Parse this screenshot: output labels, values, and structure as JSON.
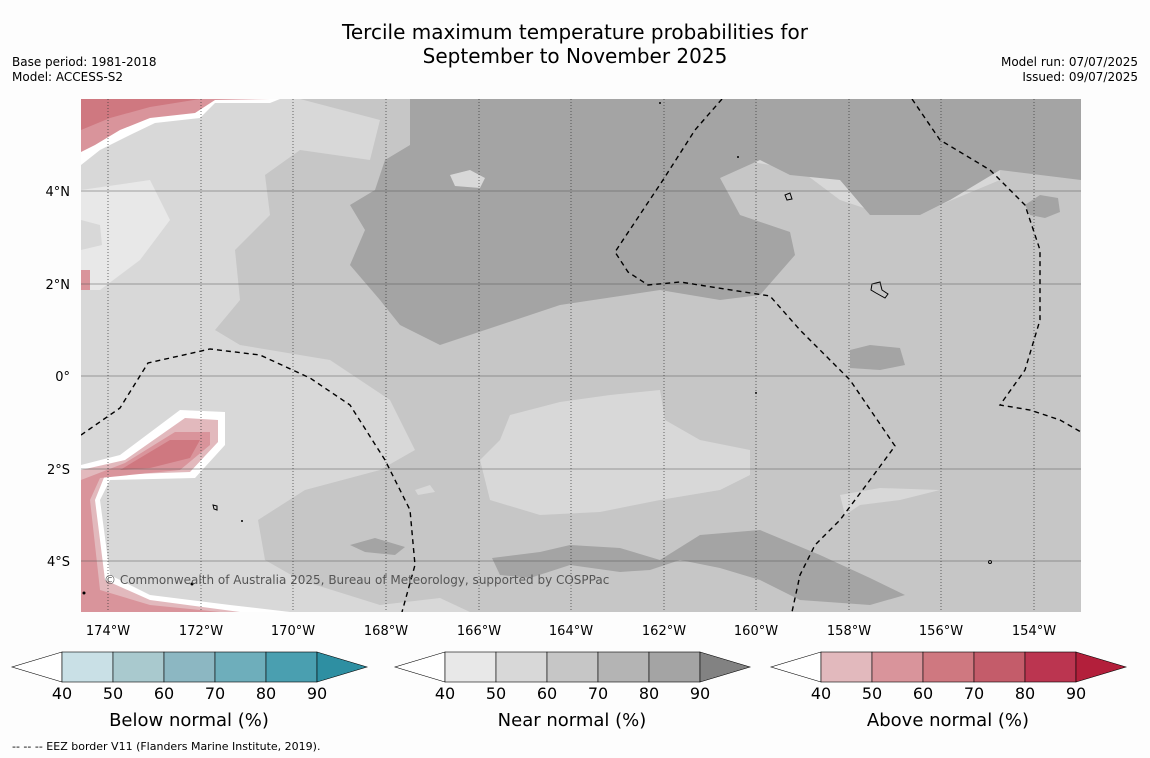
{
  "title_line1": "Tercile maximum temperature probabilities for",
  "title_line2": "September to November 2025",
  "base_period": "Base period: 1981-2018",
  "model": "Model: ACCESS-S2",
  "model_run": "Model run: 07/07/2025",
  "issued": "Issued: 09/07/2025",
  "copyright": "© Commonwealth of Australia 2025, Bureau of Meteorology, supported by COSPPac",
  "footnote": "--  --  -- EEZ border V11 (Flanders Marine Institute, 2019).",
  "lat_labels": [
    "4°N",
    "2°N",
    "0°",
    "2°S",
    "4°S"
  ],
  "lon_labels": [
    "174°W",
    "172°W",
    "170°W",
    "168°W",
    "166°W",
    "164°W",
    "162°W",
    "160°W",
    "158°W",
    "156°W",
    "154°W"
  ],
  "colorbars": [
    {
      "label": "Below normal (%)",
      "ticks": [
        "40",
        "50",
        "60",
        "70",
        "80",
        "90"
      ],
      "colors": [
        "#ffffff",
        "#c9e0e6",
        "#a9c9ce",
        "#8cb7c2",
        "#6eaebb",
        "#4a9fb0",
        "#2e8fa2"
      ]
    },
    {
      "label": "Near normal (%)",
      "ticks": [
        "40",
        "50",
        "60",
        "70",
        "80",
        "90"
      ],
      "colors": [
        "#ffffff",
        "#e8e8e8",
        "#d8d8d8",
        "#c6c6c6",
        "#b4b4b4",
        "#a4a4a4",
        "#828282"
      ]
    },
    {
      "label": "Above normal (%)",
      "ticks": [
        "40",
        "50",
        "60",
        "70",
        "80",
        "90"
      ],
      "colors": [
        "#ffffff",
        "#e2b9bd",
        "#d9949b",
        "#cf7880",
        "#c45c6a",
        "#bb3550",
        "#b31f3b"
      ]
    }
  ]
}
